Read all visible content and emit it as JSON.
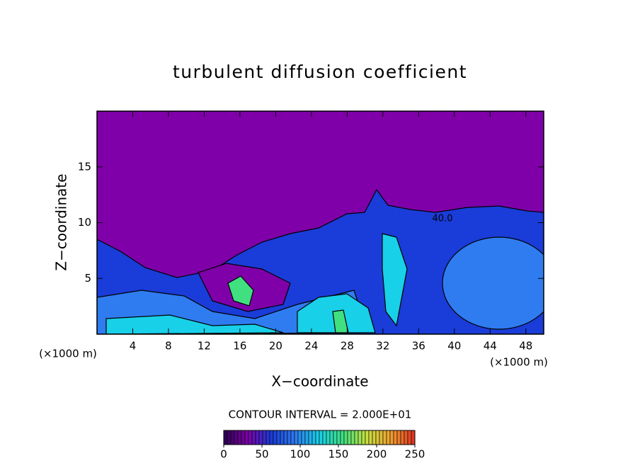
{
  "chart_data": {
    "type": "contour",
    "title": "turbulent diffusion coefficient",
    "x_label": "X−coordinate",
    "y_label": "Z−coordinate",
    "x_unit_labels": [
      "(×1000 m)",
      "(×1000 m)"
    ],
    "xlim": [
      0,
      50
    ],
    "xticks": [
      4,
      8,
      12,
      16,
      20,
      24,
      28,
      32,
      36,
      40,
      44,
      48
    ],
    "ylim": [
      0,
      20
    ],
    "yticks": [
      5,
      10,
      15
    ],
    "contour_labels": [
      "40.0"
    ],
    "contour_interval_label": "CONTOUR INTERVAL = 2.000E+01",
    "colorbar": {
      "lim": [
        0,
        250
      ],
      "ticks": [
        0,
        50,
        100,
        150,
        200,
        250
      ],
      "colors": [
        "#2a0050",
        "#7f00a8",
        "#1a3cd8",
        "#2f7cf0",
        "#18d0e8",
        "#40e080",
        "#c8e040",
        "#f0a030",
        "#e03020"
      ]
    }
  }
}
